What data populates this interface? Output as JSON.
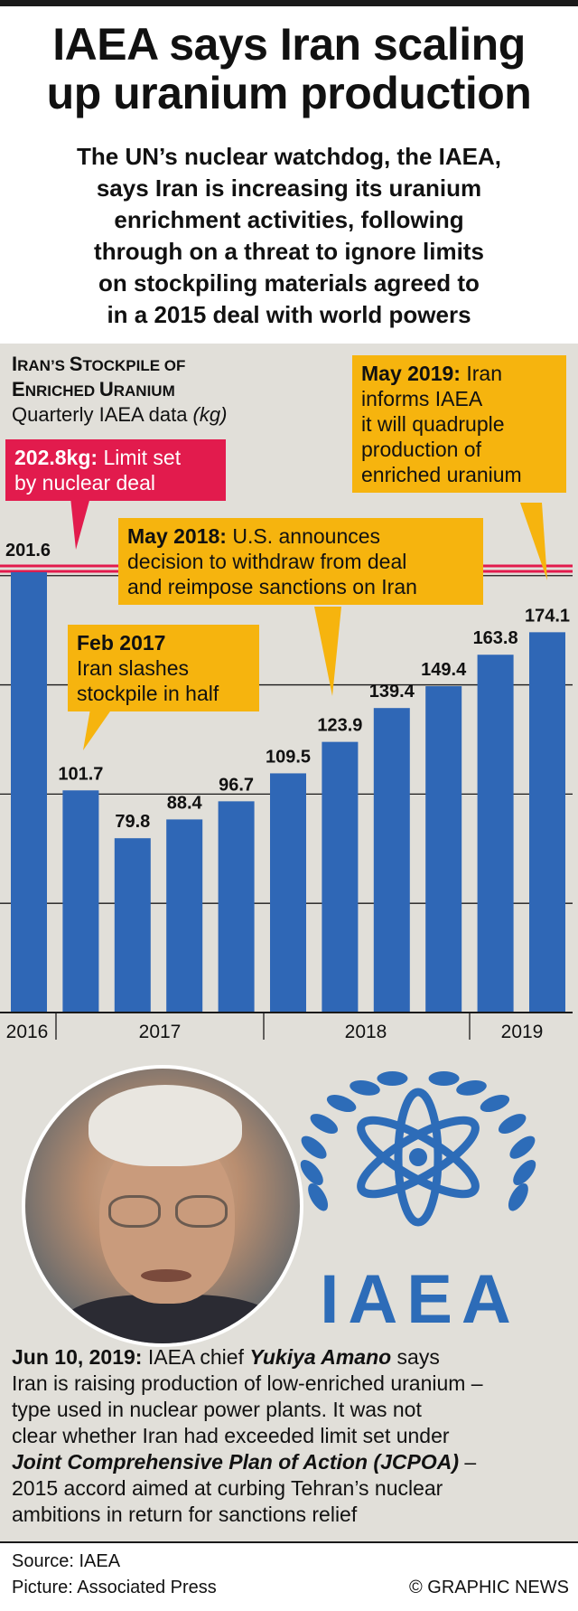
{
  "headline": {
    "line1": "IAEA says Iran scaling",
    "line2": "up uranium production"
  },
  "standfirst": [
    "The UN’s nuclear watchdog, the IAEA,",
    "says Iran is increasing its uranium",
    "enrichment activities, following",
    "through on a threat to ignore limits",
    "on stockpiling materials agreed to",
    "in a 2015 deal with world powers"
  ],
  "chart": {
    "title_line1_a": "I",
    "title_line1_b": "RAN’S ",
    "title_line1_c": "S",
    "title_line1_d": "TOCKPILE OF",
    "title_line2_a": "E",
    "title_line2_b": "NRICHED ",
    "title_line2_c": "U",
    "title_line2_d": "RANIUM",
    "subtitle": "Quarterly IAEA data ",
    "subtitle_unit": "(kg)"
  },
  "callouts": {
    "limit": {
      "value": "202.8kg:",
      "rest1": " Limit set",
      "line2": "by nuclear deal"
    },
    "may2019": {
      "date": "May 2019:",
      "rest1": " Iran",
      "line2": "informs IAEA",
      "line3": "it will quadruple",
      "line4": "production of",
      "line5": "enriched uranium"
    },
    "may2018": {
      "date": "May 2018:",
      "rest1": " U.S. announces",
      "line2": "decision to withdraw from deal",
      "line3": "and reimpose sanctions on Iran"
    },
    "feb2017": {
      "date": "Feb 2017",
      "line2": "Iran slashes",
      "line3": "stockpile in half"
    }
  },
  "chart_data": {
    "type": "bar",
    "categories": [
      "Q4 2016",
      "Q1 2017",
      "Q2 2017",
      "Q3 2017",
      "Q4 2017",
      "Q1 2018",
      "Q2 2018",
      "Q3 2018",
      "Q4 2018",
      "Q1 2019",
      "Q2 2019"
    ],
    "values": [
      201.6,
      101.7,
      79.8,
      88.4,
      96.7,
      109.5,
      123.9,
      139.4,
      149.4,
      163.8,
      174.1
    ],
    "labels": [
      "201.6",
      "101.7",
      "79.8",
      "88.4",
      "96.7",
      "109.5",
      "123.9",
      "139.4",
      "149.4",
      "163.8",
      "174.1"
    ],
    "year_labels": [
      "2016",
      "2017",
      "2018",
      "2019"
    ],
    "reference_line": {
      "value": 202.8,
      "label": "202.8kg"
    },
    "ylim": [
      0,
      202.8
    ],
    "gridlines": [
      50,
      100,
      150,
      200
    ],
    "bar_color": "#2f67b6",
    "limit_color": "#e21b4d"
  },
  "logo": {
    "text": "IAEA",
    "color": "#2d6cb8"
  },
  "story": {
    "date": "Jun 10, 2019:",
    "l1_a": " IAEA chief ",
    "l1_name": "Yukiya Amano",
    "l1_b": " says",
    "l2": "Iran is raising production of low-enriched uranium –",
    "l3": "type used in nuclear power plants. It was not",
    "l4": "clear whether Iran had exceeded limit set under",
    "l5_name": "Joint Comprehensive Plan of Action (JCPOA)",
    "l5_b": " –",
    "l6": "2015 accord aimed at curbing Tehran’s nuclear",
    "l7": "ambitions in return for sanctions relief"
  },
  "footer": {
    "source": "Source: IAEA",
    "picture": "Picture: Associated Press",
    "credit": "© GRAPHIC NEWS"
  }
}
